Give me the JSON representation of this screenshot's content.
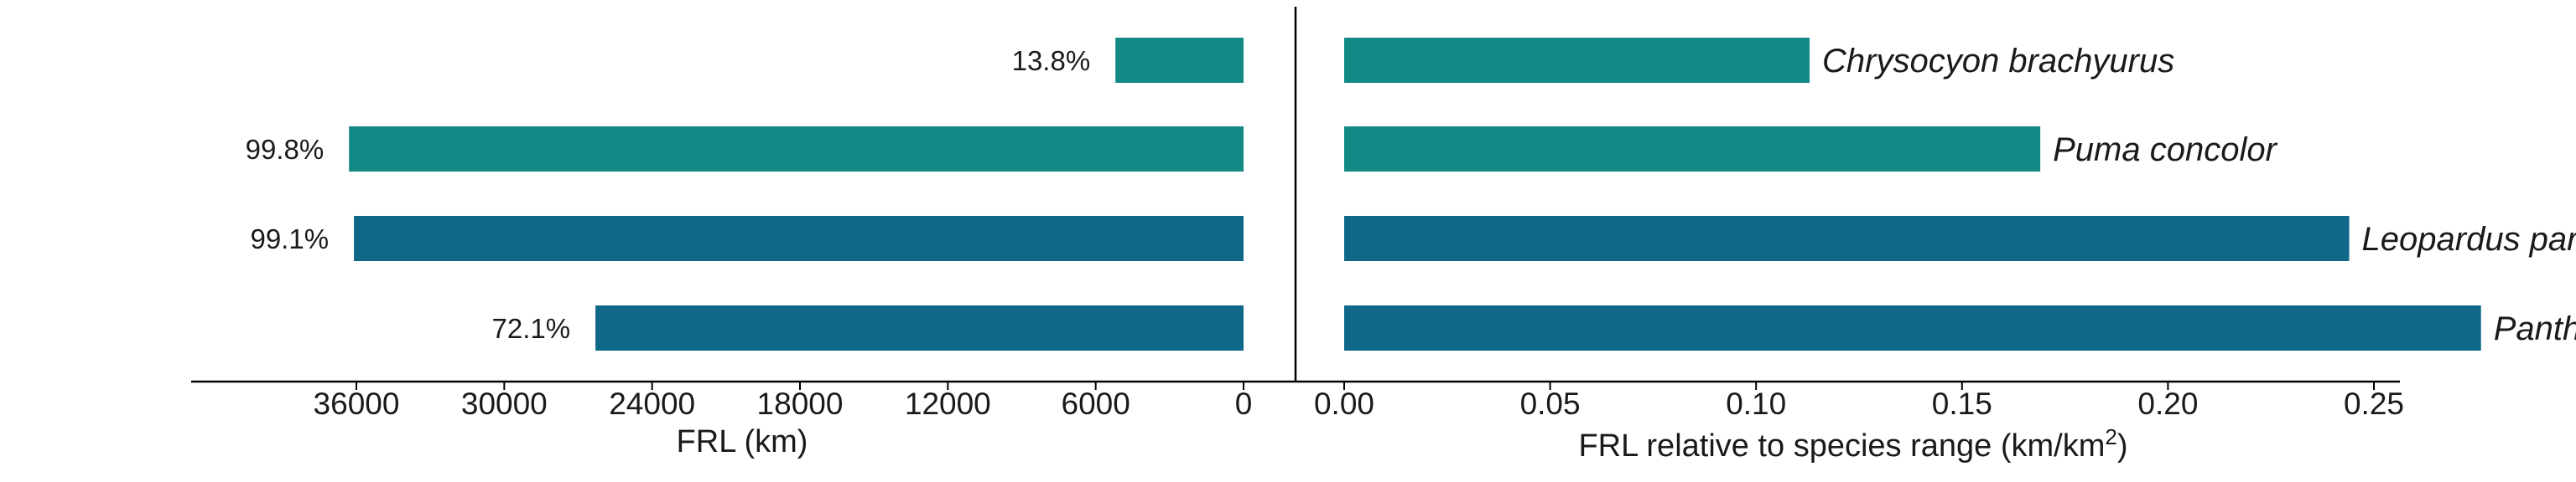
{
  "chart_data": [
    {
      "type": "bar",
      "orientation": "horizontal",
      "direction": "reversed",
      "categories": [
        "Chrysocyon brachyurus",
        "Puma concolor",
        "Leopardus pardalis",
        "Panthera onca"
      ],
      "values": [
        5200,
        36300,
        36100,
        26300
      ],
      "data_labels": [
        "13.8%",
        "99.8%",
        "99.1%",
        "72.1%"
      ],
      "colors": [
        "#138a86",
        "#138a86",
        "#0f6888",
        "#0f6888"
      ],
      "xlabel": "FRL (km)",
      "xticks": [
        36000,
        30000,
        24000,
        18000,
        12000,
        6000,
        0
      ],
      "xtick_labels": [
        "36000",
        "30000",
        "24000",
        "18000",
        "12000",
        "6000",
        "0"
      ],
      "xlim": [
        0,
        42000
      ],
      "grid": false
    },
    {
      "type": "bar",
      "orientation": "horizontal",
      "categories": [
        "Chrysocyon brachyurus",
        "Puma concolor",
        "Leopardus pardalis",
        "Panthera onca"
      ],
      "values": [
        0.113,
        0.169,
        0.244,
        0.276
      ],
      "colors": [
        "#138a86",
        "#138a86",
        "#0f6888",
        "#0f6888"
      ],
      "xlabel_main": "FRL relative to species range (km/km",
      "xlabel_sup": "2",
      "xlabel_close": ")",
      "xticks": [
        0.0,
        0.05,
        0.1,
        0.15,
        0.2,
        0.25
      ],
      "xtick_labels": [
        "0.00",
        "0.05",
        "0.10",
        "0.15",
        "0.20",
        "0.25"
      ],
      "xlim": [
        0,
        0.283
      ],
      "grid": false
    }
  ]
}
